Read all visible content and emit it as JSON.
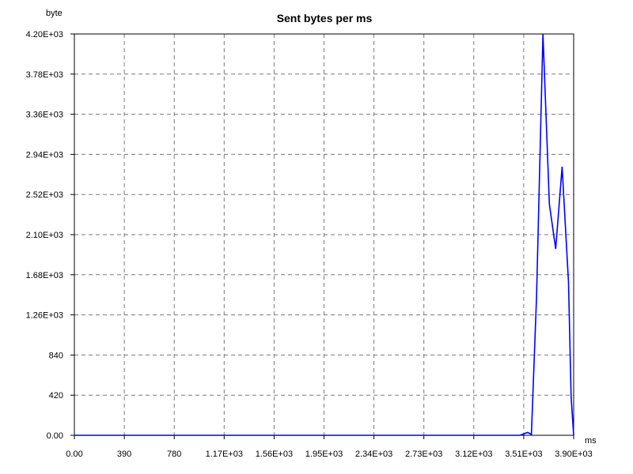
{
  "chart_data": {
    "type": "line",
    "title": "Sent bytes per ms",
    "xlabel": "ms",
    "ylabel": "byte",
    "xlim": [
      0,
      3900
    ],
    "ylim": [
      0,
      4200
    ],
    "x_ticks": [
      0,
      390,
      780,
      1170,
      1560,
      1950,
      2340,
      2730,
      3120,
      3510,
      3900
    ],
    "x_tick_labels": [
      "0.00",
      "390",
      "780",
      "1.17E+03",
      "1.56E+03",
      "1.95E+03",
      "2.34E+03",
      "2.73E+03",
      "3.12E+03",
      "3.51E+03",
      "3.90E+03"
    ],
    "y_ticks": [
      0,
      420,
      840,
      1260,
      1680,
      2100,
      2520,
      2940,
      3360,
      3780,
      4200
    ],
    "y_tick_labels": [
      "0.00",
      "420",
      "840",
      "1.26E+03",
      "1.68E+03",
      "2.10E+03",
      "2.52E+03",
      "2.94E+03",
      "3.36E+03",
      "3.78E+03",
      "4.20E+03"
    ],
    "grid": true,
    "series": [
      {
        "color": "#0000ff",
        "x": [
          0,
          3450,
          3480,
          3510,
          3540,
          3570,
          3610,
          3660,
          3710,
          3760,
          3810,
          3860,
          3880,
          3900
        ],
        "y": [
          0,
          0,
          0,
          15,
          30,
          10,
          1450,
          4200,
          2420,
          1950,
          2810,
          1600,
          400,
          0
        ]
      }
    ]
  }
}
